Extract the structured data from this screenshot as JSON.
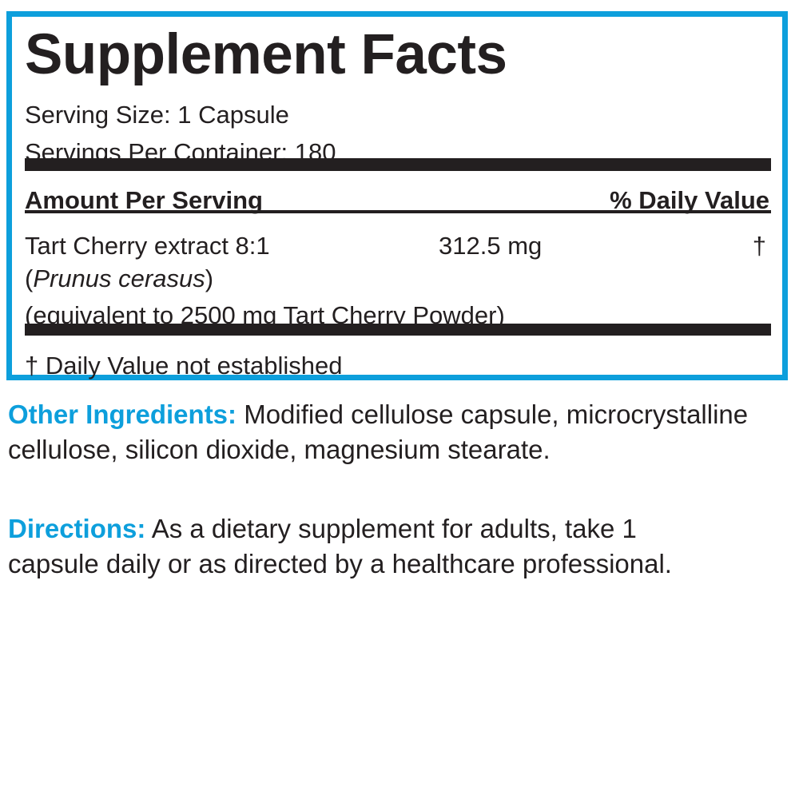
{
  "colors": {
    "accent": "#0d9fdc",
    "text": "#231f20"
  },
  "facts": {
    "title": "Supplement Facts",
    "serving_size": "Serving Size: 1 Capsule",
    "servings_per_container": "Servings Per Container: 180",
    "header_amount": "Amount Per Serving",
    "header_dv": "% Daily Value",
    "ingredient": {
      "name": "Tart Cherry extract 8:1",
      "latin_open": "(",
      "latin": "Prunus cerasus",
      "latin_close": ")",
      "equivalent": "(equivalent to 2500 mg Tart Cherry Powder)",
      "amount": "312.5 mg",
      "dv": "†"
    },
    "footnote": "† Daily Value not established"
  },
  "other_ingredients": {
    "label": "Other Ingredients:",
    "text": " Modified cellulose capsule, microcrystalline cellulose, silicon dioxide, magnesium stearate."
  },
  "directions": {
    "label": "Directions:",
    "text": " As a dietary supplement for adults, take 1 capsule daily or as directed by a healthcare professional."
  }
}
